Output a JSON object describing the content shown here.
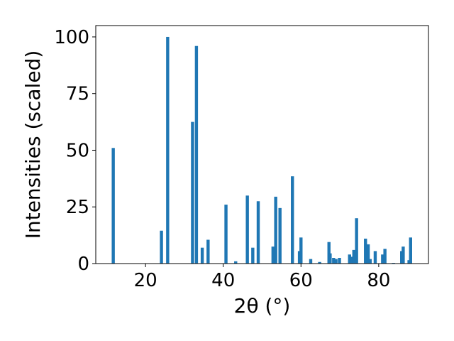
{
  "chart_data": {
    "type": "bar",
    "xlabel": "2θ (°)",
    "ylabel": "Intensities (scaled)",
    "xlim": [
      7.2,
      92.8
    ],
    "ylim": [
      0,
      105
    ],
    "xticks": [
      20,
      40,
      60,
      80
    ],
    "yticks": [
      0,
      25,
      50,
      75,
      100
    ],
    "bar_color": "#1f77b4",
    "grid": false,
    "legend": "none",
    "series": [
      {
        "x": [
          11.7,
          24.1,
          25.7,
          32.1,
          33.1,
          34.6,
          36.1,
          40.7,
          43.2,
          46.2,
          47.6,
          49.0,
          52.8,
          53.5,
          54.6,
          57.8,
          59.6,
          60.0,
          62.5,
          64.8,
          67.2,
          67.5,
          68.4,
          69.0,
          69.9,
          72.5,
          73.2,
          73.6,
          74.3,
          76.6,
          77.3,
          77.8,
          79.1,
          81.0,
          81.6,
          83.8,
          85.9,
          86.3,
          87.8,
          88.2
        ],
        "values": [
          51,
          14.5,
          100,
          62.5,
          96,
          7,
          10.5,
          26,
          1,
          30,
          7,
          27.5,
          7.5,
          29.5,
          24.5,
          38.5,
          5.5,
          11.5,
          2,
          0.7,
          9.5,
          4.5,
          2.5,
          2,
          2.5,
          4,
          3,
          6,
          20,
          11,
          8.5,
          2,
          5.5,
          4,
          6.5,
          0.3,
          5.5,
          7.5,
          1.5,
          11.5
        ]
      }
    ]
  }
}
